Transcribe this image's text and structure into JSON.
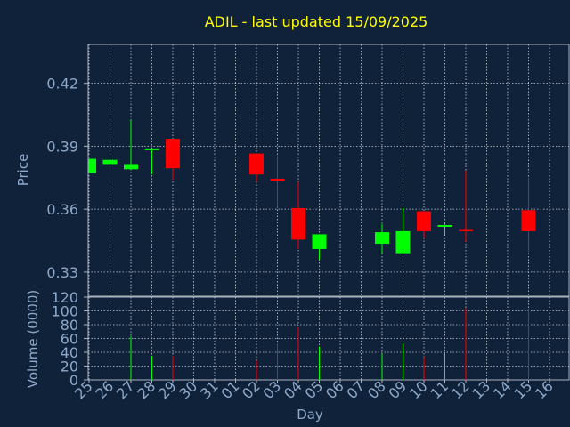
{
  "chart_data": {
    "type": "candlestick",
    "title": "ADIL - last updated 15/09/2025",
    "xlabel": "Day",
    "price_panel": {
      "ylabel": "Price",
      "yticks": [
        0.33,
        0.36,
        0.39,
        0.42
      ],
      "ytick_labels": [
        "0.33",
        "0.36",
        "0.39",
        "0.42"
      ],
      "ylim": [
        0.3185,
        0.4385
      ]
    },
    "volume_panel": {
      "ylabel": "Volume (0000)",
      "yticks": [
        0,
        20,
        40,
        60,
        80,
        100,
        120
      ],
      "ytick_labels": [
        "0",
        "20",
        "40",
        "60",
        "80",
        "100",
        "120"
      ],
      "ylim": [
        0,
        120
      ]
    },
    "x_tick_labels": [
      "25",
      "26",
      "27",
      "28",
      "29",
      "30",
      "31",
      "01",
      "02",
      "03",
      "04",
      "05",
      "06",
      "07",
      "08",
      "09",
      "10",
      "11",
      "12",
      "13",
      "14",
      "15",
      "16"
    ],
    "up_color": "#00ff00",
    "down_color": "#ff0000",
    "candles": [
      {
        "slot": 0,
        "open": 0.377,
        "high": 0.384,
        "low": 0.377,
        "close": 0.384,
        "volume": 0
      },
      {
        "slot": 1,
        "open": 0.3815,
        "high": 0.3835,
        "low": 0.372,
        "close": 0.3835,
        "volume": 28
      },
      {
        "slot": 2,
        "open": 0.379,
        "high": 0.4025,
        "low": 0.379,
        "close": 0.3815,
        "volume": 63
      },
      {
        "slot": 3,
        "open": 0.388,
        "high": 0.389,
        "low": 0.3765,
        "close": 0.3885,
        "volume": 35
      },
      {
        "slot": 4,
        "open": 0.3935,
        "high": 0.3935,
        "low": 0.374,
        "close": 0.3795,
        "volume": 35
      },
      {
        "slot": 8,
        "open": 0.3865,
        "high": 0.3865,
        "low": 0.373,
        "close": 0.3765,
        "volume": 28
      },
      {
        "slot": 9,
        "open": 0.3745,
        "high": 0.3855,
        "low": 0.361,
        "close": 0.3735,
        "volume": 53
      },
      {
        "slot": 10,
        "open": 0.3605,
        "high": 0.373,
        "low": 0.341,
        "close": 0.3455,
        "volume": 76
      },
      {
        "slot": 11,
        "open": 0.341,
        "high": 0.348,
        "low": 0.336,
        "close": 0.348,
        "volume": 48
      },
      {
        "slot": 14,
        "open": 0.3435,
        "high": 0.353,
        "low": 0.339,
        "close": 0.349,
        "volume": 38
      },
      {
        "slot": 15,
        "open": 0.339,
        "high": 0.3605,
        "low": 0.339,
        "close": 0.3495,
        "volume": 53
      },
      {
        "slot": 16,
        "open": 0.359,
        "high": 0.359,
        "low": 0.3465,
        "close": 0.3495,
        "volume": 33
      },
      {
        "slot": 17,
        "open": 0.3515,
        "high": 0.3535,
        "low": 0.348,
        "close": 0.352,
        "volume": 40
      },
      {
        "slot": 18,
        "open": 0.3505,
        "high": 0.3785,
        "low": 0.3445,
        "close": 0.3495,
        "volume": 104
      },
      {
        "slot": 21,
        "open": 0.3595,
        "high": 0.375,
        "low": 0.34,
        "close": 0.3495,
        "volume": 103
      }
    ]
  }
}
